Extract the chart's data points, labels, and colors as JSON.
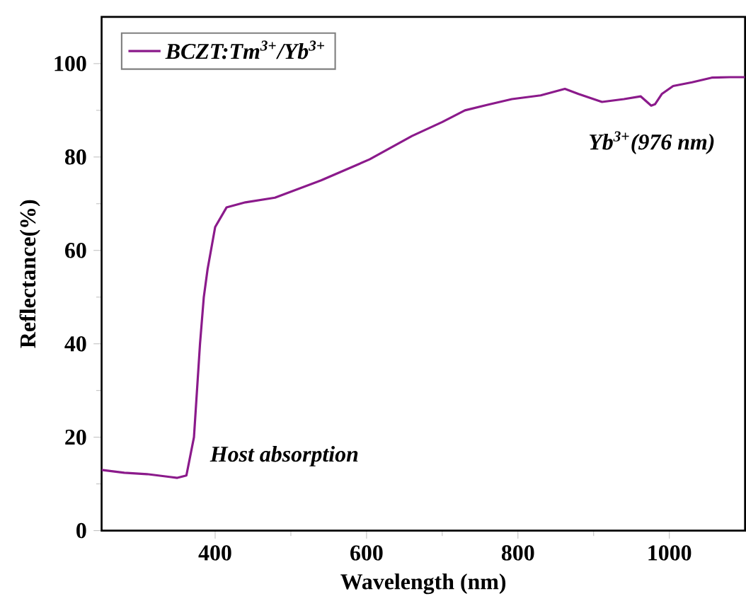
{
  "chart_data": {
    "type": "line",
    "xlabel": "Wavelength (nm)",
    "ylabel": "Reflectance(%)",
    "xlim": [
      250,
      1100
    ],
    "ylim": [
      0,
      110
    ],
    "xticks": [
      400,
      600,
      800,
      1000
    ],
    "yticks": [
      0,
      20,
      40,
      60,
      80,
      100
    ],
    "legend": "top left",
    "marker": "none",
    "line_style": "solid",
    "grid": false,
    "annotations": [
      "Yb$^{3+}$(976 nm)",
      "Host absorption"
    ],
    "series": [
      {
        "name": "BCZT:Tm$^{3+}$/Yb$^{3+}$",
        "color": "#8b1a8b",
        "x": [
          250,
          280,
          310,
          340,
          350,
          362,
          372,
          380,
          385,
          390,
          400,
          415,
          440,
          479,
          540,
          604,
          660,
          700,
          730,
          760,
          792,
          830,
          862,
          880,
          911,
          940,
          962,
          976,
          981,
          990,
          1005,
          1030,
          1056,
          1080,
          1100
        ],
        "values": [
          13,
          12.4,
          12.1,
          11.5,
          11.3,
          11.8,
          20,
          40,
          50,
          56,
          65,
          69.2,
          70.3,
          71.3,
          75,
          79.5,
          84.5,
          87.5,
          90,
          91.2,
          92.4,
          93.2,
          94.6,
          93.5,
          91.8,
          92.4,
          93,
          91,
          91.3,
          93.5,
          95.2,
          96,
          97,
          97.1,
          97.1
        ]
      }
    ]
  }
}
